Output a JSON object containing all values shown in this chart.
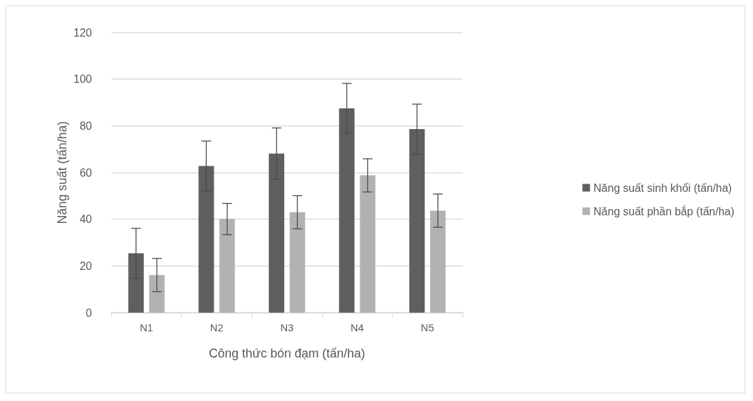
{
  "chart_data": {
    "type": "bar",
    "xlabel": "Công thức bón đạm (tấn/ha)",
    "ylabel": "Năng suất (tấn/ha)",
    "categories": [
      "N1",
      "N2",
      "N3",
      "N4",
      "N5"
    ],
    "series": [
      {
        "name": "Năng suất sinh khối (tấn/ha)",
        "color": "#5f5f5f",
        "values": [
          25.4,
          62.8,
          68.1,
          87.5,
          78.6
        ],
        "errors": [
          10.7,
          10.7,
          11,
          10.7,
          10.7
        ]
      },
      {
        "name": "Năng suất phần bắp (tấn/ha)",
        "color": "#b2b2b2",
        "values": [
          16.1,
          40.1,
          43,
          58.8,
          43.7
        ],
        "errors": [
          7.1,
          6.7,
          7.1,
          7.1,
          7.1
        ]
      }
    ],
    "ylim": [
      0,
      120
    ],
    "yticks": [
      0,
      20,
      40,
      60,
      80,
      100,
      120
    ],
    "grid": "y",
    "legend": "right"
  }
}
